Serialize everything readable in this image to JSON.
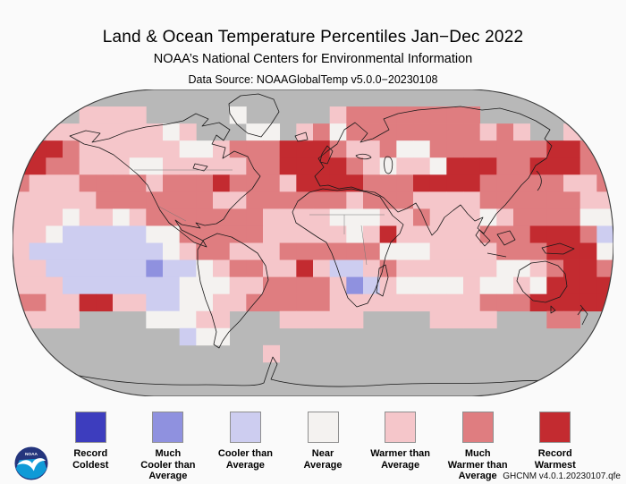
{
  "header": {
    "title": "Land & Ocean Temperature Percentiles Jan−Dec 2022",
    "subtitle": "NOAA’s National Centers for Environmental Information",
    "data_source": "Data Source: NOAAGlobalTemp v5.0.0−20230108"
  },
  "footer": {
    "dataset_version": "GHCNM v4.0.1.20230107.qfe",
    "logo": "noaa-emblem"
  },
  "legend": {
    "items": [
      {
        "id": "record-coldest",
        "lines": [
          "Record",
          "Coldest"
        ],
        "color": "#3d3dbe"
      },
      {
        "id": "much-cooler-than-average",
        "lines": [
          "Much",
          "Cooler than",
          "Average"
        ],
        "color": "#8f91df"
      },
      {
        "id": "cooler-than-average",
        "lines": [
          "Cooler than",
          "Average"
        ],
        "color": "#cdcdf0"
      },
      {
        "id": "near-average",
        "lines": [
          "Near",
          "Average"
        ],
        "color": "#f4f2f0"
      },
      {
        "id": "warmer-than-average",
        "lines": [
          "Warmer than",
          "Average"
        ],
        "color": "#f5c6ca"
      },
      {
        "id": "much-warmer-than-average",
        "lines": [
          "Much",
          "Warmer than",
          "Average"
        ],
        "color": "#df7d80"
      },
      {
        "id": "record-warmest",
        "lines": [
          "Record",
          "Warmest"
        ],
        "color": "#c32b30"
      }
    ]
  },
  "chart_data": {
    "type": "heatmap",
    "projection": "robinson-world-map",
    "title": "Land & Ocean Temperature Percentiles Jan−Dec 2022",
    "subtitle": "NOAA’s National Centers for Environmental Information",
    "data_source": "Data Source: NOAAGlobalTemp v5.0.0−20230108",
    "dataset_version": "GHCNM v4.0.1.20230107.qfe",
    "legend_position": "bottom",
    "categories": [
      "Record Coldest",
      "Much Cooler than Average",
      "Cooler than Average",
      "Near Average",
      "Warmer than Average",
      "Much Warmer than Average",
      "Record Warmest"
    ],
    "palette": {
      "0": "#3d3dbe",
      "1": "#8f91df",
      "2": "#cdcdf0",
      "3": "#f4f2f0",
      "4": "#f5c6ca",
      "5": "#df7d80",
      "6": "#c32b30",
      "G": "#b8b8b8"
    },
    "missing_code": "G",
    "grid": {
      "cols": 36,
      "rows": 18,
      "note_codes": "0=Record Coldest,1=Much Cooler,2=Cooler,3=Near Average,4=Warmer,5=Much Warmer,6=Record Warmest,G=no data",
      "cells": [
        [
          "GGGGGG",
          "GGGGGG",
          "GGGGGG",
          "GGGGGG",
          "GGGGGG",
          "GGGGGG"
        ],
        [
          "GGGG44",
          "44GGGG",
          "G3GGGG",
          "G45555",
          "5555GG",
          "GGGGGG"
        ],
        [
          "GG4444",
          "44434G",
          "GG33G4",
          "535555",
          "555545",
          "4GG4GG"
        ],
        [
          "666544",
          "444433",
          "455566",
          "654453",
          "355555",
          "556655"
        ],
        [
          "665544",
          "433444",
          "445566",
          "665434",
          "436665",
          "566655"
        ],
        [
          "544455",
          "554555",
          "655546",
          "666555",
          "666655",
          "555445"
        ],
        [
          "444445",
          "555555",
          "445555",
          "554555",
          "444455",
          "555544"
        ],
        [
          "444344",
          "345555",
          "555444",
          "433344",
          "544434",
          "555533"
        ],
        [
          "443222",
          "223355",
          "555444",
          "443464",
          "444455",
          "566652"
        ],
        [
          "422222",
          "222345",
          "544455",
          "555533",
          "344445",
          "556663"
        ],
        [
          "442222",
          "221223",
          "455446",
          "422454",
          "444443",
          "345665"
        ],
        [
          "444222",
          "222233",
          "344555",
          "541243",
          "333433",
          "436666"
        ],
        [
          "554466",
          "442233",
          "445555",
          "544444",
          "444455",
          "566666"
        ],
        [
          "4444GG",
          "GG3334",
          "4GGG44",
          "444GGG",
          "G4444G",
          "GG55GG"
        ],
        [
          "GGGGGG",
          "GGGG23",
          "3GGGGG",
          "GGGGGG",
          "GGGGGG",
          "GGGGGG"
        ],
        [
          "GGGGGG",
          "GGGGGG",
          "GGG4GG",
          "GGGGGG",
          "GGGGGG",
          "GGGGGG"
        ],
        [
          "GGGGGG",
          "GGGGGG",
          "GGGGGG",
          "GGGGGG",
          "GGGGGG",
          "GGGGGG"
        ],
        [
          "GGGGGG",
          "GGGGGG",
          "GGGGGG",
          "GGGGGG",
          "GGGGGG",
          "GGGGGG"
        ]
      ]
    }
  }
}
